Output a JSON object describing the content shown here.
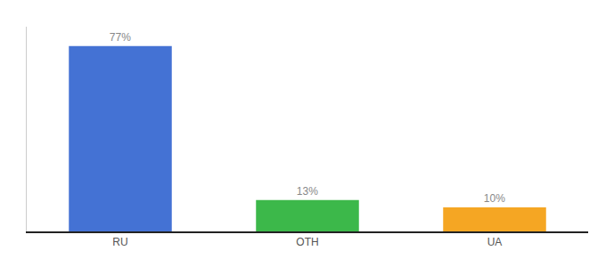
{
  "chart_data": {
    "type": "bar",
    "categories": [
      "RU",
      "OTH",
      "UA"
    ],
    "values": [
      77,
      13,
      10
    ],
    "value_labels": [
      "77%",
      "13%",
      "10%"
    ],
    "colors": [
      "#4472d4",
      "#3cb84a",
      "#f5a623"
    ],
    "ylim": [
      0,
      85
    ],
    "data_labels": true,
    "tick_labels": "x",
    "grid": false
  }
}
